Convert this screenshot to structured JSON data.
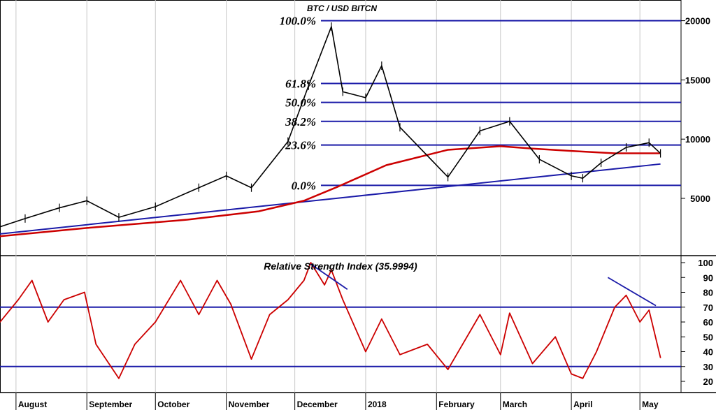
{
  "chart_data": [
    {
      "type": "line",
      "title": "BTC / USD BITCN",
      "yticks": [
        5000,
        10000,
        15000,
        20000
      ],
      "ylim": [
        0,
        21500
      ],
      "months": [
        "August",
        "September",
        "October",
        "November",
        "December",
        "2018",
        "February",
        "March",
        "April",
        "May"
      ],
      "fib_levels": [
        {
          "label": "100.0%",
          "value": 20000
        },
        {
          "label": "61.8%",
          "value": 14700
        },
        {
          "label": "50.0%",
          "value": 13100
        },
        {
          "label": "38.2%",
          "value": 11500
        },
        {
          "label": "23.6%",
          "value": 9500
        },
        {
          "label": "0.0%",
          "value": 6100
        }
      ],
      "series": [
        {
          "color": "#000000",
          "x": [
            "2017-07-25",
            "2017-08-05",
            "2017-08-20",
            "2017-09-01",
            "2017-09-15",
            "2017-10-01",
            "2017-10-20",
            "2017-11-01",
            "2017-11-12",
            "2017-11-28",
            "2017-12-07",
            "2017-12-17",
            "2017-12-22",
            "2018-01-01",
            "2018-01-08",
            "2018-01-16",
            "2018-02-06",
            "2018-02-20",
            "2018-03-05",
            "2018-03-18",
            "2018-04-01",
            "2018-04-06",
            "2018-04-14",
            "2018-04-25",
            "2018-05-05",
            "2018-05-10"
          ],
          "values": [
            2600,
            3300,
            4200,
            4800,
            3400,
            4300,
            5900,
            6900,
            5900,
            9800,
            14500,
            19500,
            14000,
            13500,
            16200,
            11000,
            6800,
            10700,
            11500,
            8300,
            6900,
            6700,
            8000,
            9300,
            9700,
            8800
          ]
        },
        {
          "color": "#cc0000",
          "x": [
            "2017-07-25",
            "2017-09-01",
            "2017-10-15",
            "2017-11-15",
            "2017-12-05",
            "2017-12-20",
            "2018-01-10",
            "2018-02-06",
            "2018-03-01",
            "2018-03-15",
            "2018-04-01",
            "2018-04-20",
            "2018-05-10"
          ],
          "values": [
            1800,
            2500,
            3200,
            3900,
            4800,
            6000,
            7800,
            9100,
            9400,
            9200,
            9000,
            8800,
            8800
          ]
        },
        {
          "color": "#1a1aa8",
          "x": [
            "2017-07-25",
            "2018-05-10"
          ],
          "values": [
            2000,
            7900
          ]
        }
      ]
    },
    {
      "type": "line",
      "title": "Relative Strength Index (35.9994)",
      "yticks": [
        20,
        30,
        40,
        50,
        60,
        70,
        80,
        90,
        100
      ],
      "ylim": [
        15,
        103
      ],
      "overbought": 70,
      "oversold": 30,
      "series": [
        {
          "color": "#cc0000",
          "x": [
            "2017-07-25",
            "2017-08-02",
            "2017-08-08",
            "2017-08-15",
            "2017-08-22",
            "2017-08-31",
            "2017-09-05",
            "2017-09-15",
            "2017-09-22",
            "2017-10-01",
            "2017-10-12",
            "2017-10-20",
            "2017-10-28",
            "2017-11-03",
            "2017-11-12",
            "2017-11-20",
            "2017-11-28",
            "2017-12-05",
            "2017-12-08",
            "2017-12-14",
            "2017-12-17",
            "2017-12-22",
            "2018-01-01",
            "2018-01-08",
            "2018-01-16",
            "2018-01-28",
            "2018-02-06",
            "2018-02-20",
            "2018-03-01",
            "2018-03-05",
            "2018-03-15",
            "2018-03-25",
            "2018-04-01",
            "2018-04-06",
            "2018-04-12",
            "2018-04-20",
            "2018-04-25",
            "2018-05-01",
            "2018-05-05",
            "2018-05-10"
          ],
          "values": [
            60,
            75,
            88,
            60,
            75,
            80,
            45,
            22,
            45,
            60,
            88,
            65,
            88,
            72,
            35,
            65,
            75,
            88,
            100,
            85,
            95,
            75,
            40,
            62,
            38,
            45,
            28,
            65,
            38,
            66,
            32,
            50,
            25,
            22,
            40,
            70,
            78,
            60,
            68,
            36
          ]
        }
      ],
      "trendlines": [
        {
          "x": [
            "2017-12-08",
            "2017-12-24"
          ],
          "values": [
            99,
            82
          ]
        },
        {
          "x": [
            "2018-04-17",
            "2018-05-08"
          ],
          "values": [
            90,
            71
          ]
        }
      ]
    }
  ]
}
